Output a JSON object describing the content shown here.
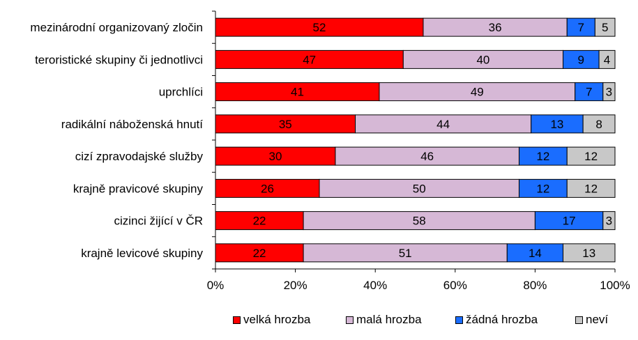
{
  "chart_data": {
    "type": "bar",
    "orientation": "horizontal",
    "stacked": "percent",
    "categories": [
      "mezinárodní organizovaný zločin",
      "teroristické skupiny či jednotlivci",
      "uprchlíci",
      "radikální náboženská hnutí",
      "cizí zpravodajské služby",
      "krajně pravicové skupiny",
      "cizinci žijící v ČR",
      "krajně levicové skupiny"
    ],
    "series": [
      {
        "name": "velká hrozba",
        "color": "#ff0000",
        "values": [
          52,
          47,
          41,
          35,
          30,
          26,
          22,
          22
        ]
      },
      {
        "name": "malá hrozba",
        "color": "#d6b8d6",
        "values": [
          36,
          40,
          49,
          44,
          46,
          50,
          58,
          51
        ]
      },
      {
        "name": "žádná hrozba",
        "color": "#1a6dff",
        "values": [
          7,
          9,
          7,
          13,
          12,
          12,
          17,
          14
        ]
      },
      {
        "name": "neví",
        "color": "#c8c8c8",
        "values": [
          5,
          4,
          3,
          8,
          12,
          12,
          3,
          13
        ]
      }
    ],
    "xlim": [
      0,
      100
    ],
    "xticks": [
      "0%",
      "20%",
      "40%",
      "60%",
      "80%",
      "100%"
    ],
    "grid": false,
    "legend_position": "bottom",
    "title": "",
    "xlabel": "",
    "ylabel": ""
  }
}
